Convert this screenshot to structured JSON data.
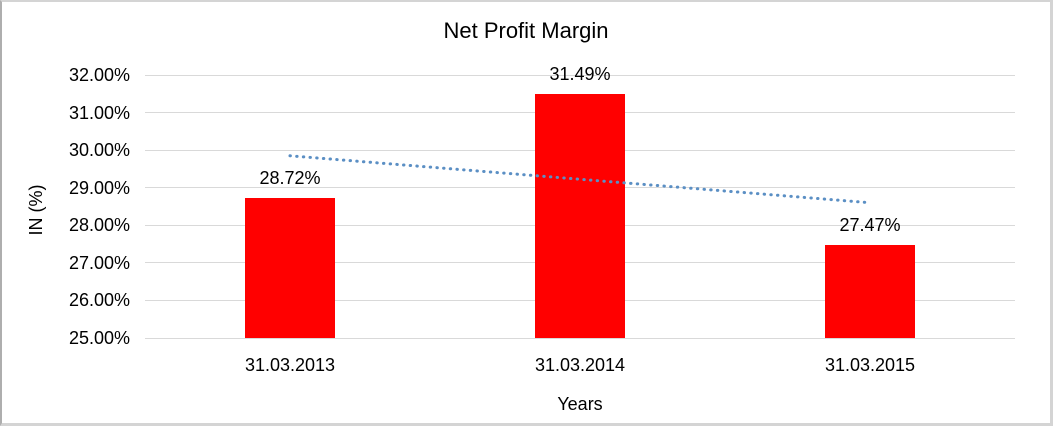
{
  "chart_data": {
    "type": "bar",
    "title": "Net Profit Margin",
    "xlabel": "Years",
    "ylabel": "IN (%)",
    "categories": [
      "31.03.2013",
      "31.03.2014",
      "31.03.2015"
    ],
    "values": [
      28.72,
      31.49,
      27.47
    ],
    "data_labels": [
      "28.72%",
      "31.49%",
      "27.47%"
    ],
    "ytick_labels": [
      "32.00%",
      "31.00%",
      "30.00%",
      "29.00%",
      "28.00%",
      "27.00%",
      "26.00%",
      "25.00%"
    ],
    "ytick_values": [
      32,
      31,
      30,
      29,
      28,
      27,
      26,
      25
    ],
    "ylim": [
      25,
      32
    ],
    "grid": true,
    "legend": false,
    "bar_color": "#ff0000",
    "gridline_color": "#d9d9d9",
    "text_color": "#000000",
    "trendline": {
      "type": "linear",
      "style": "dotted",
      "color": "#5b8fc4",
      "start_value": 29.85,
      "end_value": 28.6
    }
  }
}
